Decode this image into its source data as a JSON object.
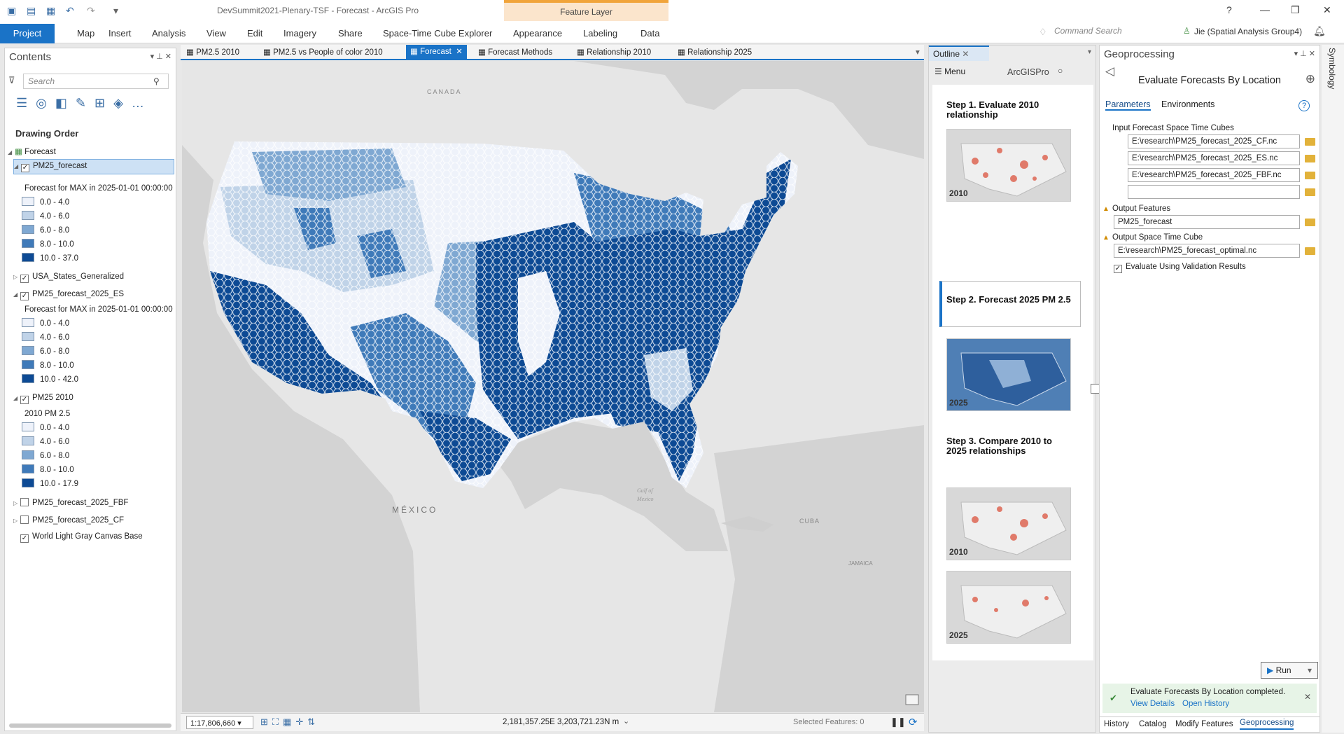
{
  "window": {
    "title": "DevSummit2021-Plenary-TSF - Forecast - ArcGIS Pro",
    "context_tab": "Feature Layer",
    "help": "?"
  },
  "ribbon": {
    "tabs": [
      "Project",
      "Map",
      "Insert",
      "Analysis",
      "View",
      "Edit",
      "Imagery",
      "Share",
      "Space-Time Cube Explorer",
      "Appearance",
      "Labeling",
      "Data"
    ],
    "command_search": "Command Search",
    "user": "Jie (Spatial Analysis Group4)"
  },
  "contents": {
    "title": "Contents",
    "search_placeholder": "Search",
    "drawing_order": "Drawing Order",
    "map_name": "Forecast",
    "layers": [
      {
        "name": "PM25_forecast",
        "checked": true,
        "expanded": true,
        "legend_title": "Forecast for MAX in 2025-01-01 00:00:00",
        "classes": [
          "0.0 - 4.0",
          "4.0 - 6.0",
          "6.0 - 8.0",
          "8.0 - 10.0",
          "10.0 - 37.0"
        ]
      },
      {
        "name": "USA_States_Generalized",
        "checked": true,
        "expanded": false
      },
      {
        "name": "PM25_forecast_2025_ES",
        "checked": true,
        "expanded": true,
        "legend_title": "Forecast for MAX in 2025-01-01 00:00:00",
        "classes": [
          "0.0 - 4.0",
          "4.0 - 6.0",
          "6.0 - 8.0",
          "8.0 - 10.0",
          "10.0 - 42.0"
        ]
      },
      {
        "name": "PM25 2010",
        "checked": true,
        "expanded": true,
        "legend_title": "2010 PM 2.5",
        "classes": [
          "0.0 - 4.0",
          "4.0 - 6.0",
          "6.0 - 8.0",
          "8.0 - 10.0",
          "10.0 - 17.9"
        ]
      },
      {
        "name": "PM25_forecast_2025_FBF",
        "checked": false,
        "expanded": false
      },
      {
        "name": "PM25_forecast_2025_CF",
        "checked": false,
        "expanded": false
      },
      {
        "name": "World Light Gray Canvas Base",
        "checked": true,
        "expanded": false
      }
    ],
    "class_colors": [
      "#eef2fa",
      "#c0d3e8",
      "#7fa8d2",
      "#3f7ab9",
      "#0d4a94"
    ]
  },
  "doc_tabs": [
    "PM2.5 2010",
    "PM2.5 vs People of color 2010",
    "Forecast",
    "Forecast Methods",
    "Relationship 2010",
    "Relationship 2025"
  ],
  "doc_tabs_active": "Forecast",
  "map": {
    "labels": {
      "canada": "CANADA",
      "mexico": "MÉXICO",
      "gulf1": "Gulf of",
      "gulf2": "Mexico",
      "cuba": "CUBA",
      "jamaica": "JAMAICA"
    },
    "scale": "1:17,806,660",
    "coords": "2,181,357.25E 3,203,721.23N m",
    "selected": "Selected Features: 0"
  },
  "outline": {
    "tab": "Outline",
    "menu": "Menu",
    "brand": "ArcGISPro",
    "steps": [
      {
        "title": "Step 1. Evaluate 2010 relationship",
        "thumb_year": "2010"
      },
      {
        "title": "Step 2. Forecast 2025 PM 2.5",
        "thumb_year": "2025"
      },
      {
        "title": "Step 3. Compare 2010 to 2025 relationships",
        "thumb_years": [
          "2010",
          "2025"
        ]
      }
    ]
  },
  "geoprocessing": {
    "title": "Geoprocessing",
    "tool": "Evaluate Forecasts By Location",
    "tabs": [
      "Parameters",
      "Environments"
    ],
    "input_label": "Input Forecast Space Time Cubes",
    "inputs": [
      "E:\\research\\PM25_forecast_2025_CF.nc",
      "E:\\research\\PM25_forecast_2025_ES.nc",
      "E:\\research\\PM25_forecast_2025_FBF.nc",
      ""
    ],
    "output_features_label": "Output Features",
    "output_features": "PM25_forecast",
    "output_cube_label": "Output Space Time Cube",
    "output_cube": "E:\\research\\PM25_forecast_optimal.nc",
    "validation_label": "Evaluate Using Validation Results",
    "run": "Run",
    "message": "Evaluate Forecasts By Location completed.",
    "view_details": "View Details",
    "open_history": "Open History",
    "bottom_tabs": [
      "History",
      "Catalog",
      "Modify Features",
      "Geoprocessing"
    ]
  },
  "symbology": "Symbology"
}
